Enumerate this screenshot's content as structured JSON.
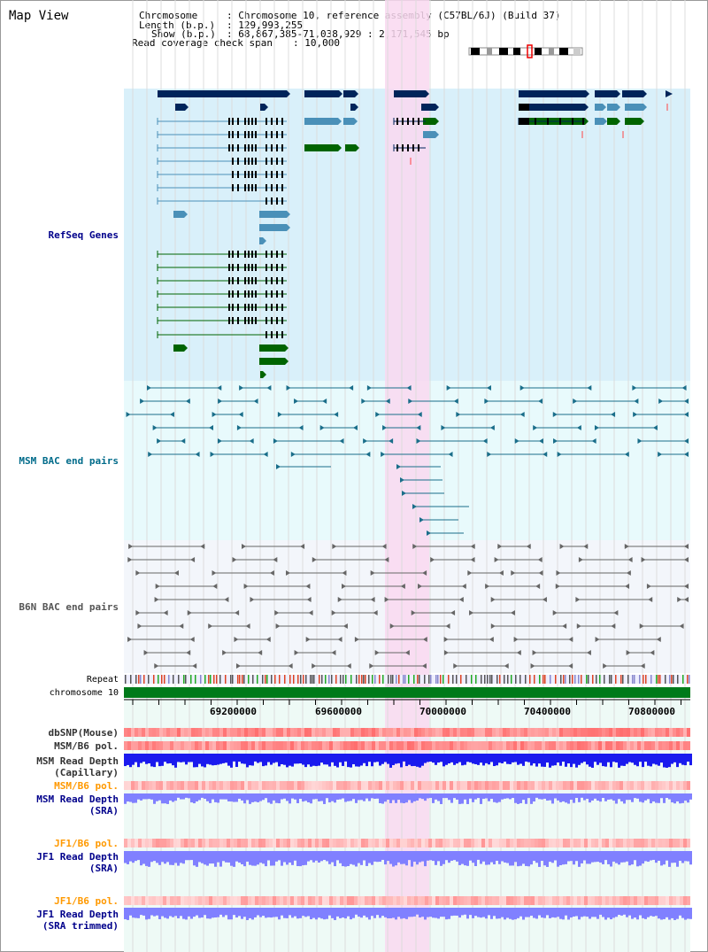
{
  "title": "Map View",
  "info": {
    "chromosome_key": "Chromosome",
    "chromosome_val": ": Chromosome 10, reference assembly (C57BL/6J) (Build 37)",
    "length_key": "Length (b.p.)",
    "length_val": ": 129,993,255",
    "show_key": "Show (b.p.)",
    "show_val": ": 68,867,385-71,038,929 : 2,171,545 bp",
    "coverage_key": "Read coverage check span",
    "coverage_val": ": 10,000"
  },
  "tracks": {
    "refseq": "RefSeq Genes",
    "msm_bac": "MSM BAC end pairs",
    "b6n_bac": "B6N BAC end pairs",
    "repeat": "Repeat",
    "chromosome": "chromosome 10",
    "dbsnp": "dbSNP(Mouse)",
    "msm_b6_pol_1": "MSM/B6 pol.",
    "msm_read_depth_cap_1": "MSM Read Depth",
    "msm_read_depth_cap_2": "(Capillary)",
    "msm_b6_pol_2": "MSM/B6 pol.",
    "msm_read_depth_sra_1": "MSM Read Depth",
    "msm_read_depth_sra_2": "(SRA)",
    "jf1_b6_pol_1": "JF1/B6 pol.",
    "jf1_read_depth_sra_1": "JF1 Read Depth",
    "jf1_read_depth_sra_2": "(SRA)",
    "jf1_b6_pol_2": "JF1/B6 pol.",
    "jf1_read_depth_trim_1": "JF1 Read Depth",
    "jf1_read_depth_trim_2": "(SRA trimmed)"
  },
  "axis_ticks": [
    "69200000",
    "69600000",
    "70000000",
    "70400000",
    "70800000"
  ],
  "colors": {
    "refseq_bg": "#d9f0fa",
    "msm_bg": "#e8fafc",
    "b6n_bg": "#f3f6fb",
    "highlight": "#f9d8f0",
    "gene_dark": "#00245a",
    "gene_light": "#4a90b8",
    "gene_green": "#006400",
    "msm_line": "#1a6e8a",
    "b6n_line": "#666666",
    "chrom_green": "#007a1a",
    "snp_red": "#ee3333",
    "depth_blue": "#1a1aee",
    "depth_lavender": "#8080ff",
    "label_blue": "#00008b",
    "label_orange": "#ff9900",
    "label_teal": "#006b8a"
  }
}
